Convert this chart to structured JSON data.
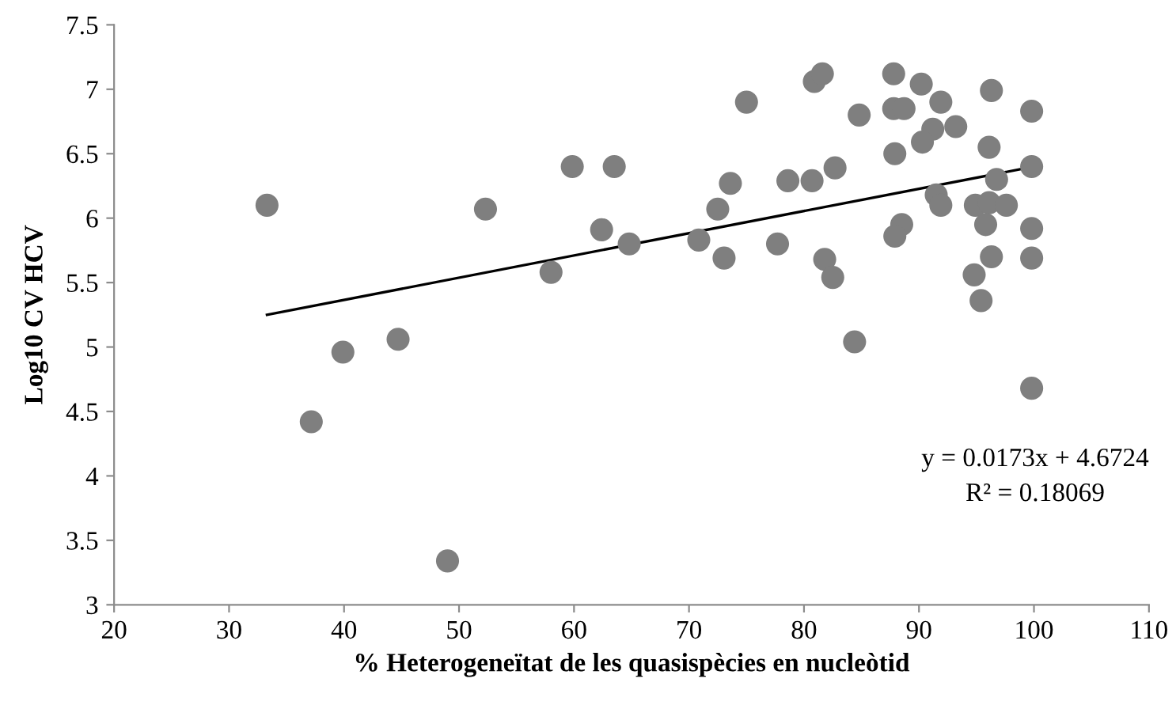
{
  "chart_data": {
    "type": "scatter",
    "xlabel": "% Heterogeneïtat de les quasispècies en nucleòtid",
    "ylabel": "Log10 CV HCV",
    "xlim": [
      20,
      110
    ],
    "xticks": [
      20,
      30,
      40,
      50,
      60,
      70,
      80,
      90,
      100,
      110
    ],
    "ylim": [
      3,
      7.5
    ],
    "yticks": [
      3,
      3.5,
      4,
      4.5,
      5,
      5.5,
      6,
      6.5,
      7,
      7.5
    ],
    "grid": false,
    "legend": false,
    "annotations": [
      "y = 0.0173x + 4.6724",
      "R² = 0.18069"
    ],
    "series": [
      {
        "marker": "circle",
        "color": "#7f7f7f",
        "x": [
          33.3,
          37.15,
          39.9,
          44.7,
          49.0,
          58.0,
          52.3,
          59.85,
          63.5,
          62.4,
          64.8,
          75.0,
          73.6,
          72.5,
          70.85,
          73.05,
          77.7,
          78.6,
          80.7,
          80.9,
          81.6,
          87.8,
          90.2,
          91.9,
          96.3,
          99.8,
          84.8,
          87.8,
          88.7,
          91.2,
          90.3,
          93.2,
          96.1,
          87.9,
          99.8,
          96.75,
          82.7,
          91.5,
          91.9,
          94.9,
          96.1,
          97.6,
          95.8,
          99.8,
          88.5,
          87.9,
          81.8,
          82.5,
          96.3,
          99.8,
          94.8,
          95.4,
          84.4,
          99.8
        ],
        "values": [
          6.1,
          4.42,
          4.96,
          5.06,
          3.34,
          5.58,
          6.07,
          6.4,
          6.4,
          5.91,
          5.8,
          6.9,
          6.27,
          6.07,
          5.83,
          5.69,
          5.8,
          6.29,
          6.29,
          7.06,
          7.12,
          7.12,
          7.04,
          6.9,
          6.99,
          6.83,
          6.8,
          6.85,
          6.85,
          6.69,
          6.59,
          6.71,
          6.55,
          6.5,
          6.4,
          6.3,
          6.39,
          6.18,
          6.1,
          6.1,
          6.12,
          6.1,
          5.95,
          5.92,
          5.95,
          5.86,
          5.68,
          5.54,
          5.7,
          5.69,
          5.56,
          5.36,
          5.04,
          4.68
        ]
      },
      {
        "type": "line",
        "marker": "none",
        "color": "#000000",
        "x": [
          33.3,
          100
        ],
        "values": [
          5.25,
          6.4
        ]
      }
    ]
  }
}
